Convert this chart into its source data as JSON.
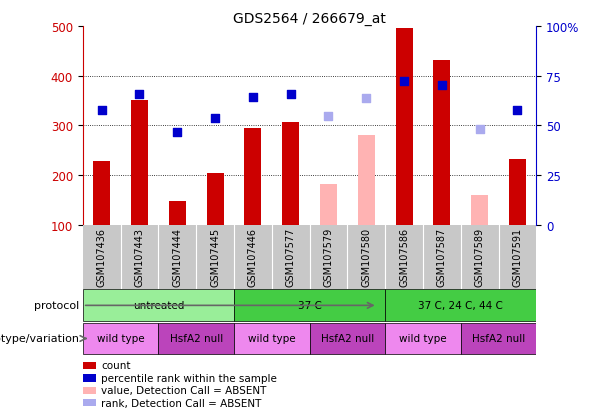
{
  "title": "GDS2564 / 266679_at",
  "samples": [
    "GSM107436",
    "GSM107443",
    "GSM107444",
    "GSM107445",
    "GSM107446",
    "GSM107577",
    "GSM107579",
    "GSM107580",
    "GSM107586",
    "GSM107587",
    "GSM107589",
    "GSM107591"
  ],
  "count_values": [
    228,
    350,
    148,
    204,
    295,
    307,
    null,
    null,
    495,
    432,
    null,
    232
  ],
  "count_absent": [
    null,
    null,
    null,
    null,
    null,
    null,
    182,
    280,
    null,
    null,
    160,
    null
  ],
  "percentile_values": [
    330,
    362,
    286,
    315,
    357,
    363,
    null,
    null,
    390,
    382,
    null,
    330
  ],
  "percentile_absent": [
    null,
    null,
    null,
    null,
    null,
    null,
    318,
    355,
    null,
    null,
    293,
    null
  ],
  "ylim_left": [
    100,
    500
  ],
  "ylim_right": [
    0,
    100
  ],
  "yticks_left": [
    100,
    200,
    300,
    400,
    500
  ],
  "yticks_right": [
    0,
    25,
    50,
    75,
    100
  ],
  "ytick_labels_right": [
    "0",
    "25",
    "50",
    "75",
    "100%"
  ],
  "grid_lines": [
    200,
    300,
    400
  ],
  "bar_color_present": "#cc0000",
  "bar_color_absent": "#ffb3b3",
  "dot_color_present": "#0000cc",
  "dot_color_absent": "#aaaaee",
  "sample_bg_color": "#c8c8c8",
  "proto_light": "#99ee99",
  "proto_dark": "#44cc44",
  "geno_light": "#ee88ee",
  "geno_dark": "#bb44bb",
  "axis_color_left": "#cc0000",
  "axis_color_right": "#0000cc",
  "dot_size": 40,
  "bar_width": 0.45,
  "proto_data": [
    {
      "label": "untreated",
      "start": 0,
      "end": 3,
      "light": true
    },
    {
      "label": "37 C",
      "start": 4,
      "end": 7,
      "light": false
    },
    {
      "label": "37 C, 24 C, 44 C",
      "start": 8,
      "end": 11,
      "light": false
    }
  ],
  "geno_data": [
    {
      "label": "wild type",
      "start": 0,
      "end": 1,
      "light": true
    },
    {
      "label": "HsfA2 null",
      "start": 2,
      "end": 3,
      "light": false
    },
    {
      "label": "wild type",
      "start": 4,
      "end": 5,
      "light": true
    },
    {
      "label": "HsfA2 null",
      "start": 6,
      "end": 7,
      "light": false
    },
    {
      "label": "wild type",
      "start": 8,
      "end": 9,
      "light": true
    },
    {
      "label": "HsfA2 null",
      "start": 10,
      "end": 11,
      "light": false
    }
  ],
  "protocol_row_label": "protocol",
  "genotype_row_label": "genotype/variation",
  "legend_items": [
    {
      "label": "count",
      "color": "#cc0000"
    },
    {
      "label": "percentile rank within the sample",
      "color": "#0000cc"
    },
    {
      "label": "value, Detection Call = ABSENT",
      "color": "#ffb3b3"
    },
    {
      "label": "rank, Detection Call = ABSENT",
      "color": "#aaaaee"
    }
  ]
}
